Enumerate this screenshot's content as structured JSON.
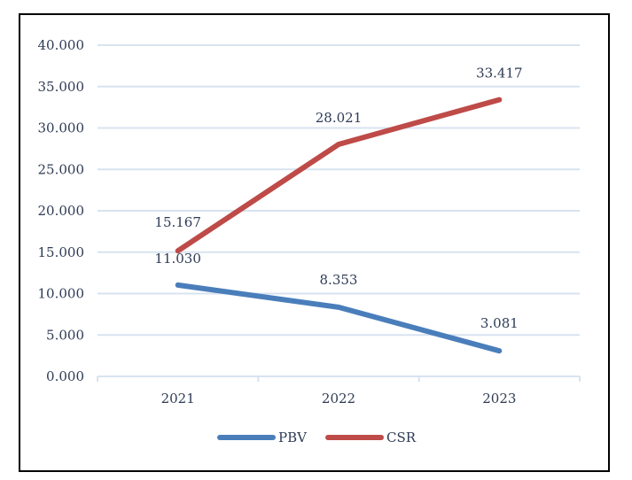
{
  "chart_data": {
    "type": "line",
    "title": "",
    "xlabel": "",
    "ylabel": "",
    "categories": [
      "2021",
      "2022",
      "2023"
    ],
    "ylim": [
      0,
      40
    ],
    "yticks": [
      "0.000",
      "5.000",
      "10.000",
      "15.000",
      "20.000",
      "25.000",
      "30.000",
      "35.000",
      "40.000"
    ],
    "grid": true,
    "legend_position": "bottom",
    "series": [
      {
        "name": "PBV",
        "color": "#4a7ebb",
        "values": [
          11.03,
          8.353,
          3.081
        ],
        "labels": [
          "11.030",
          "8.353",
          "3.081"
        ]
      },
      {
        "name": "CSR",
        "color": "#be4b48",
        "values": [
          15.167,
          28.021,
          33.417
        ],
        "labels": [
          "15.167",
          "28.021",
          "33.417"
        ]
      }
    ]
  }
}
